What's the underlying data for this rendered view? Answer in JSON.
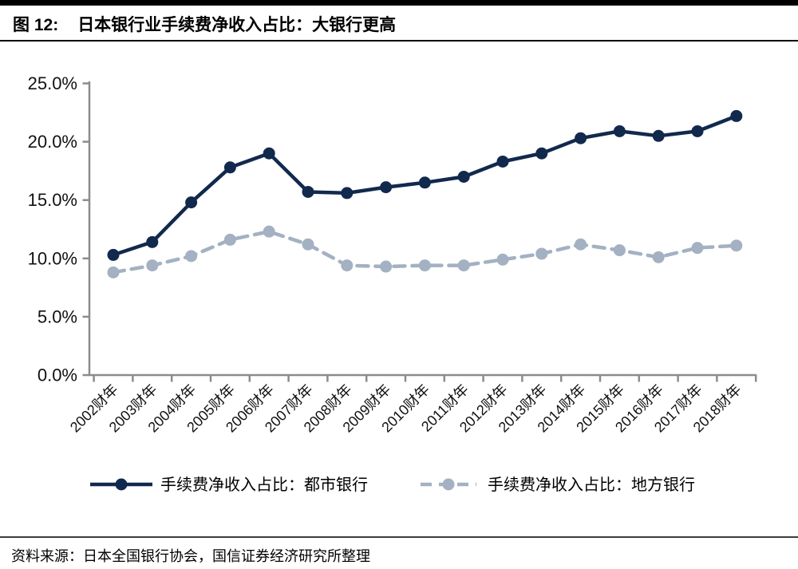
{
  "header": {
    "figure_label": "图 12:",
    "title": "日本银行业手续费净收入占比：大银行更高"
  },
  "chart_data": {
    "type": "line",
    "title": "日本银行业手续费净收入占比：大银行更高",
    "categories": [
      "2002财年",
      "2003财年",
      "2004财年",
      "2005财年",
      "2006财年",
      "2007财年",
      "2008财年",
      "2009财年",
      "2010财年",
      "2011财年",
      "2012财年",
      "2013财年",
      "2014财年",
      "2015财年",
      "2016财年",
      "2017财年",
      "2018财年"
    ],
    "series": [
      {
        "name": "手续费净收入占比：都市银行",
        "color": "#12294e",
        "line_style": "solid",
        "marker": "circle",
        "values": [
          10.3,
          11.4,
          14.8,
          17.8,
          19.0,
          15.7,
          15.6,
          16.1,
          16.5,
          17.0,
          18.3,
          19.0,
          20.3,
          20.9,
          20.5,
          20.9,
          22.2
        ]
      },
      {
        "name": "手续费净收入占比：地方银行",
        "color": "#a3b1c2",
        "line_style": "dashed",
        "marker": "circle",
        "values": [
          8.8,
          9.4,
          10.2,
          11.6,
          12.3,
          11.2,
          9.4,
          9.3,
          9.4,
          9.4,
          9.9,
          10.4,
          11.2,
          10.7,
          10.1,
          10.9,
          11.1
        ]
      }
    ],
    "ylim": [
      0,
      25
    ],
    "yticks": [
      {
        "value": 0,
        "label": "0.0%"
      },
      {
        "value": 5,
        "label": "5.0%"
      },
      {
        "value": 10,
        "label": "10.0%"
      },
      {
        "value": 15,
        "label": "15.0%"
      },
      {
        "value": 20,
        "label": "20.0%"
      },
      {
        "value": 25,
        "label": "25.0%"
      }
    ],
    "grid": false,
    "legend_position": "bottom",
    "axis_color": "#8c8c8c"
  },
  "footer": {
    "source": "资料来源：日本全国银行协会，国信证券经济研究所整理"
  }
}
